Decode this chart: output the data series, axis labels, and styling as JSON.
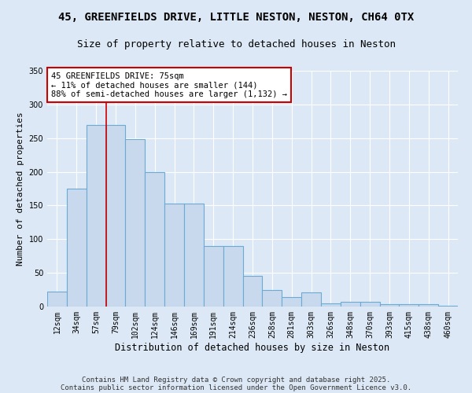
{
  "title": "45, GREENFIELDS DRIVE, LITTLE NESTON, NESTON, CH64 0TX",
  "subtitle": "Size of property relative to detached houses in Neston",
  "xlabel": "Distribution of detached houses by size in Neston",
  "ylabel": "Number of detached properties",
  "categories": [
    "12sqm",
    "34sqm",
    "57sqm",
    "79sqm",
    "102sqm",
    "124sqm",
    "146sqm",
    "169sqm",
    "191sqm",
    "214sqm",
    "236sqm",
    "258sqm",
    "281sqm",
    "303sqm",
    "326sqm",
    "348sqm",
    "370sqm",
    "393sqm",
    "415sqm",
    "438sqm",
    "460sqm"
  ],
  "values": [
    22,
    175,
    270,
    270,
    248,
    200,
    153,
    153,
    90,
    90,
    46,
    24,
    14,
    21,
    5,
    7,
    7,
    3,
    4,
    4,
    1
  ],
  "bar_color": "#c8d9ee",
  "bar_edge_color": "#6aaad4",
  "background_color": "#dce8f5",
  "grid_color": "#ffffff",
  "vline_position": 2.5,
  "vline_color": "#cc0000",
  "annotation_text": "45 GREENFIELDS DRIVE: 75sqm\n← 11% of detached houses are smaller (144)\n88% of semi-detached houses are larger (1,132) →",
  "annotation_box_color": "#ffffff",
  "annotation_box_edge": "#cc0000",
  "ylim": [
    0,
    350
  ],
  "yticks": [
    0,
    50,
    100,
    150,
    200,
    250,
    300,
    350
  ],
  "footer_line1": "Contains HM Land Registry data © Crown copyright and database right 2025.",
  "footer_line2": "Contains public sector information licensed under the Open Government Licence v3.0.",
  "title_fontsize": 10,
  "subtitle_fontsize": 9,
  "xlabel_fontsize": 8.5,
  "ylabel_fontsize": 8,
  "tick_fontsize": 7,
  "annot_fontsize": 7.5,
  "footer_fontsize": 6.5
}
